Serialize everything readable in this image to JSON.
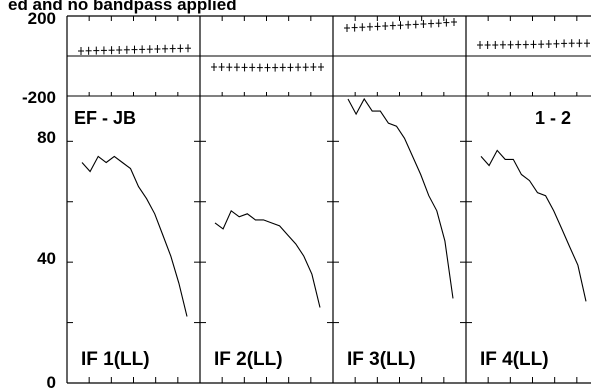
{
  "chart_data": {
    "type": "line",
    "title": "ed and no bandpass applied",
    "baseline": "EF - JB",
    "polarization_pair": "1 - 2",
    "phase_axis": {
      "ticks": [
        "200",
        "-200"
      ],
      "range": [
        -200,
        200
      ],
      "zero_line": true
    },
    "amplitude_axis": {
      "ticks": [
        "80",
        "40",
        "0"
      ],
      "range": [
        0,
        95
      ]
    },
    "panels": [
      {
        "label": "IF 1(LL)",
        "phase": [
          25,
          26,
          27,
          28,
          29,
          30,
          31,
          32,
          33,
          34,
          35,
          36,
          37,
          38,
          39
        ],
        "amplitude": [
          73,
          70,
          75,
          73,
          75,
          73,
          71,
          65,
          61,
          56,
          49,
          42,
          33,
          22
        ]
      },
      {
        "label": "IF 2(LL)",
        "phase": [
          -55,
          -55,
          -56,
          -56,
          -57,
          -57,
          -58,
          -58,
          -58,
          -57,
          -57,
          -56,
          -56,
          -55,
          -55
        ],
        "amplitude": [
          53,
          51,
          57,
          55,
          56,
          54,
          54,
          53,
          52,
          49,
          46,
          42,
          36,
          25
        ]
      },
      {
        "label": "IF 3(LL)",
        "phase": [
          140,
          142,
          144,
          146,
          148,
          150,
          152,
          154,
          156,
          158,
          160,
          162,
          164,
          167,
          170
        ],
        "amplitude": [
          94,
          89,
          94,
          90,
          90,
          86,
          85,
          81,
          75,
          69,
          62,
          57,
          47,
          28
        ]
      },
      {
        "label": "IF 4(LL)",
        "phase": [
          55,
          55,
          55,
          56,
          56,
          57,
          57,
          58,
          59,
          60,
          61,
          63,
          64,
          64,
          64
        ],
        "amplitude": [
          75,
          72,
          77,
          74,
          74,
          69,
          67,
          63,
          62,
          57,
          51,
          45,
          39,
          27
        ]
      }
    ]
  }
}
